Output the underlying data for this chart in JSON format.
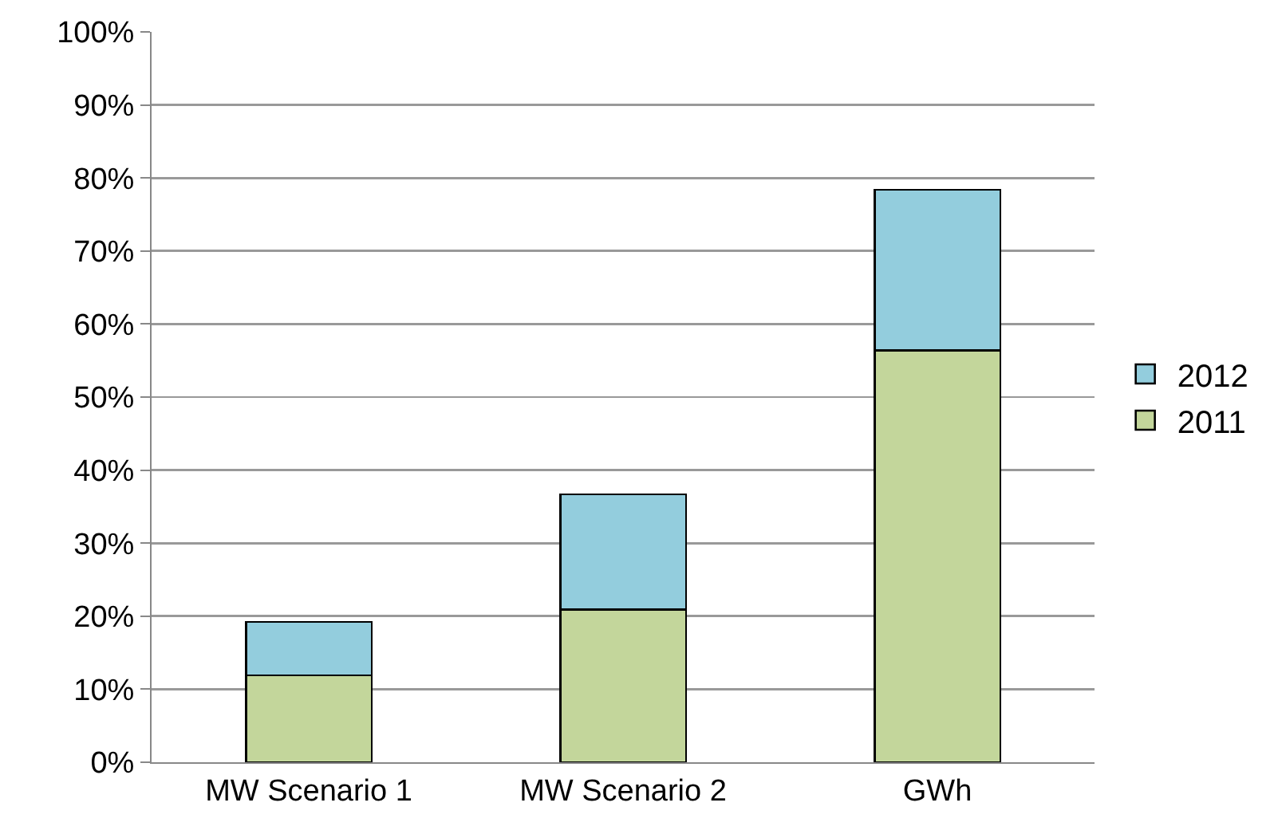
{
  "chart_data": {
    "type": "bar",
    "stacked": true,
    "categories": [
      "MW Scenario 1",
      "MW Scenario 2",
      "GWh"
    ],
    "series": [
      {
        "name": "2011",
        "color": "#c3d69b",
        "values": [
          11.9,
          20.9,
          56.4
        ]
      },
      {
        "name": "2012",
        "color": "#93cddd",
        "values": [
          7.3,
          15.8,
          22.0
        ]
      }
    ],
    "ylim": [
      0,
      100
    ],
    "yticks": [
      {
        "value": 0,
        "label": "0%"
      },
      {
        "value": 10,
        "label": "10%"
      },
      {
        "value": 20,
        "label": "20%"
      },
      {
        "value": 30,
        "label": "30%"
      },
      {
        "value": 40,
        "label": "40%"
      },
      {
        "value": 50,
        "label": "50%"
      },
      {
        "value": 60,
        "label": "60%"
      },
      {
        "value": 70,
        "label": "70%"
      },
      {
        "value": 80,
        "label": "80%"
      },
      {
        "value": 90,
        "label": "90%"
      },
      {
        "value": 100,
        "label": "100%"
      }
    ],
    "grid": "y",
    "legend": "right"
  }
}
